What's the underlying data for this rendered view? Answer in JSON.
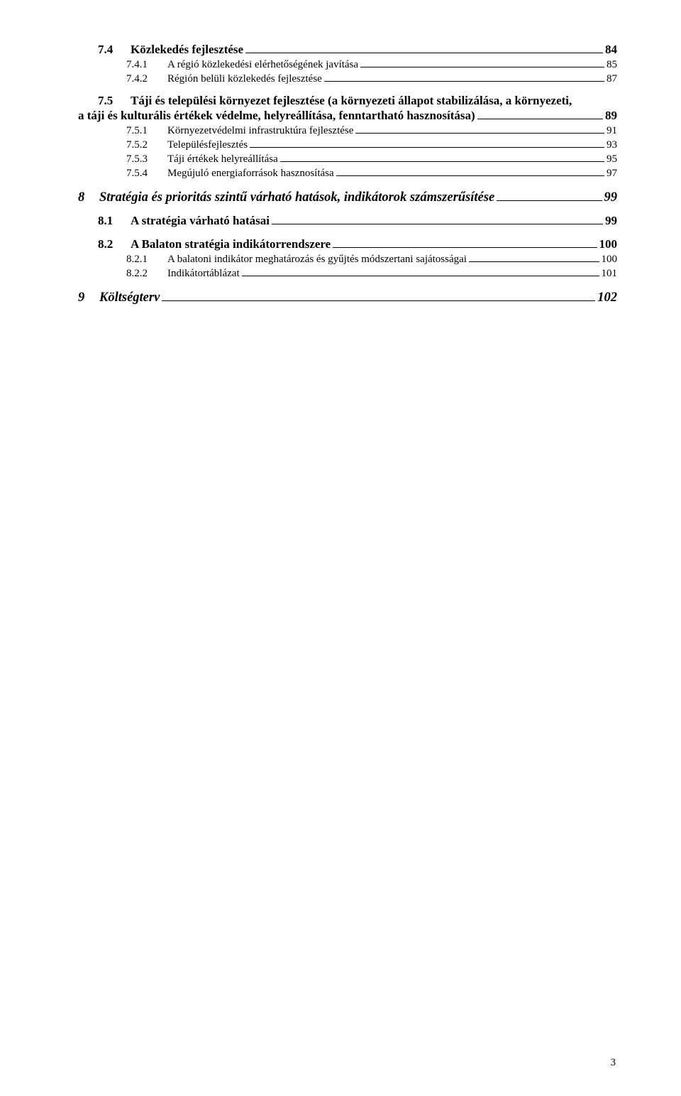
{
  "toc": [
    {
      "level": 2,
      "num": "7.4",
      "title": "Közlekedés fejlesztése",
      "page": "84"
    },
    {
      "level": 3,
      "num": "7.4.1",
      "title": "A régió közlekedési elérhetőségének javítása",
      "page": "85"
    },
    {
      "level": 3,
      "num": "7.4.2",
      "title": "Régión belüli közlekedés fejlesztése",
      "page": "87"
    },
    {
      "level": 2,
      "num": "7.5",
      "title": "Táji és települési környezet fejlesztése (a környezeti állapot stabilizálása, a környezeti, a táji és kulturális értékek védelme, helyreállítása, fenntartható hasznosítása)",
      "page": "89"
    },
    {
      "level": 3,
      "num": "7.5.1",
      "title": "Környezetvédelmi infrastruktúra fejlesztése",
      "page": "91"
    },
    {
      "level": 3,
      "num": "7.5.2",
      "title": "Településfejlesztés",
      "page": "93"
    },
    {
      "level": 3,
      "num": "7.5.3",
      "title": "Táji értékek helyreállítása",
      "page": "95"
    },
    {
      "level": 3,
      "num": "7.5.4",
      "title": "Megújuló energiaforrások hasznosítása",
      "page": "97"
    },
    {
      "level": 1,
      "num": "8",
      "title": "Stratégia és prioritás szintű várható hatások, indikátorok számszerűsítése",
      "page": "99"
    },
    {
      "level": 2,
      "num": "8.1",
      "title": "A stratégia várható hatásai",
      "page": "99"
    },
    {
      "level": 2,
      "num": "8.2",
      "title": "A Balaton stratégia indikátorrendszere",
      "page": "100"
    },
    {
      "level": 3,
      "num": "8.2.1",
      "title": "A balatoni indikátor meghatározás és gyűjtés módszertani sajátosságai",
      "page": "100"
    },
    {
      "level": 3,
      "num": "8.2.2",
      "title": "Indikátortáblázat",
      "page": "101"
    },
    {
      "level": 1,
      "num": "9",
      "title": "Költségterv",
      "page": "102"
    }
  ],
  "entry75_wrap": {
    "num": "7.5",
    "line1": "Táji és települési környezet fejlesztése (a környezeti állapot stabilizálása, a környezeti,",
    "line2": "a táji és kulturális értékek védelme, helyreállítása, fenntartható hasznosítása)",
    "page": "89"
  },
  "footer_page": "3"
}
